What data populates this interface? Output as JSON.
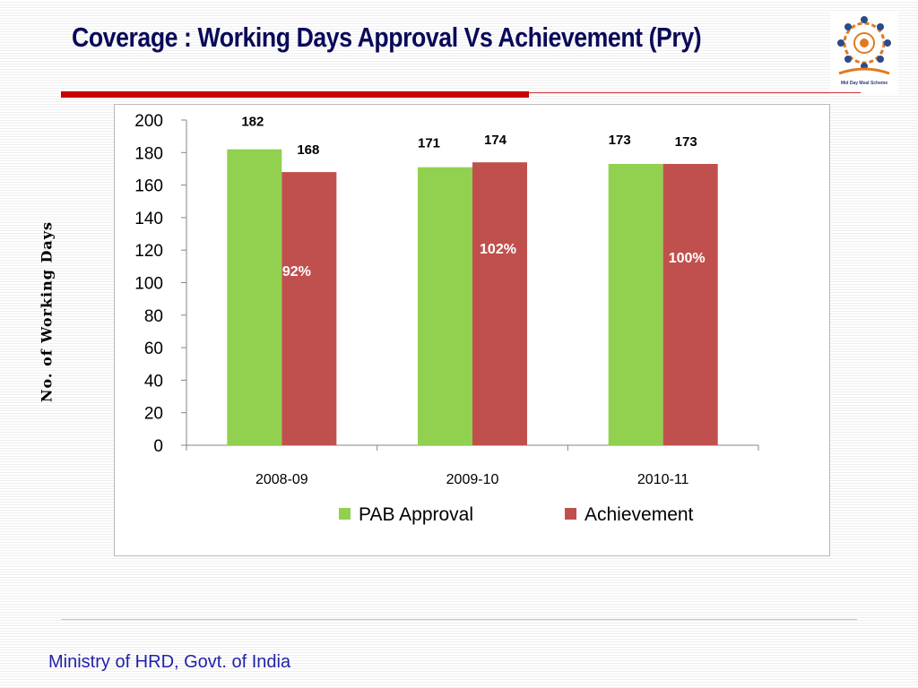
{
  "title": "Coverage : Working Days Approval Vs Achievement (Pry)",
  "logo": {
    "caption": "Mid Day Meal Scheme"
  },
  "footer": "Ministry of HRD, Govt. of India",
  "chart_data": {
    "type": "bar",
    "title": "",
    "xlabel": "",
    "ylabel": "No. of Working Days",
    "ylim": [
      0,
      200
    ],
    "yticks": [
      0,
      20,
      40,
      60,
      80,
      100,
      120,
      140,
      160,
      180,
      200
    ],
    "categories": [
      "2008-09",
      "2009-10",
      "2010-11"
    ],
    "series": [
      {
        "name": "PAB Approval",
        "color": "#92d050",
        "values": [
          182,
          171,
          173
        ]
      },
      {
        "name": "Achievement",
        "color": "#c0504d",
        "values": [
          168,
          174,
          173
        ]
      }
    ],
    "annotations": [
      "92%",
      "102%",
      "100%"
    ],
    "legend": "bottom",
    "grid": false
  }
}
